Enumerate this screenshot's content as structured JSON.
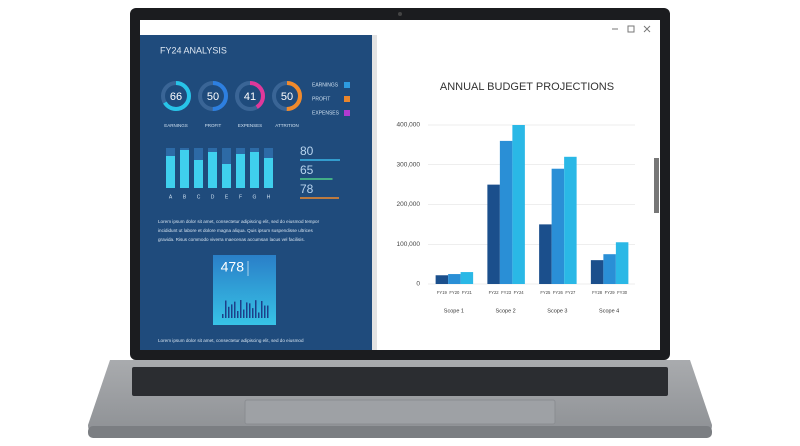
{
  "left_panel": {
    "title": "FY24 ANALYSIS",
    "gauges": [
      {
        "label": "EARNINGS",
        "value": 66,
        "color": "#27c4e8"
      },
      {
        "label": "PROFIT",
        "value": 50,
        "color": "#2d7fe0"
      },
      {
        "label": "EXPENSES",
        "value": 41,
        "color": "#e0389a"
      },
      {
        "label": "ATTRITION",
        "value": 50,
        "color": "#f08a2c"
      }
    ],
    "legend": [
      {
        "label": "EARNINGS",
        "color": "#2d9be0"
      },
      {
        "label": "PROFIT",
        "color": "#e8852c"
      },
      {
        "label": "EXPENSES",
        "color": "#b03ad0"
      }
    ],
    "mini_bars": {
      "categories": [
        "A",
        "B",
        "C",
        "D",
        "E",
        "F",
        "G",
        "H"
      ],
      "values": [
        80,
        95,
        70,
        90,
        60,
        85,
        90,
        75
      ],
      "color": "#3fd0ee"
    },
    "stats": [
      {
        "value": 80,
        "color": "#3ab8e8"
      },
      {
        "value": 65,
        "color": "#4fd08a"
      },
      {
        "value": 78,
        "color": "#f08a2c"
      }
    ],
    "paragraphs": [
      "Lorem ipsum dolor sit amet, consectetur adipiscing elit, sed do eiusmod tempor",
      "incididunt ut labore et dolore magna aliqua. Quis ipsum suspendisse ultrices",
      "gravida. Risus commodo viverra maecenas accumsan lacus vel facilisis.",
      "Lorem ipsum dolor sit amet, consectetur adipiscing elit, sed do eiusmod"
    ],
    "card": {
      "value": 478
    }
  },
  "chart_data": {
    "type": "bar",
    "title": "ANNUAL BUDGET PROJECTIONS",
    "categories": [
      "FY19",
      "FY20",
      "FY21",
      "FY22",
      "FY23",
      "FY24",
      "FY25",
      "FY26",
      "FY27",
      "FY28",
      "FY29",
      "FY30"
    ],
    "values": [
      22000,
      25000,
      30000,
      250000,
      360000,
      400000,
      150000,
      290000,
      320000,
      60000,
      75000,
      105000
    ],
    "colors": [
      "#1b4f8c",
      "#2a8fd6",
      "#2ab8e6"
    ],
    "groups": [
      "Scope 1",
      "Scope 2",
      "Scope 3",
      "Scope 4"
    ],
    "ylim": [
      0,
      400000
    ],
    "yticks": [
      0,
      {
        "value": 100000,
        "label": "100,000"
      },
      {
        "value": 200000,
        "label": "200,000"
      },
      {
        "value": 300000,
        "label": "300,000"
      },
      {
        "value": 400000,
        "label": "400,000"
      }
    ],
    "grid": true
  }
}
